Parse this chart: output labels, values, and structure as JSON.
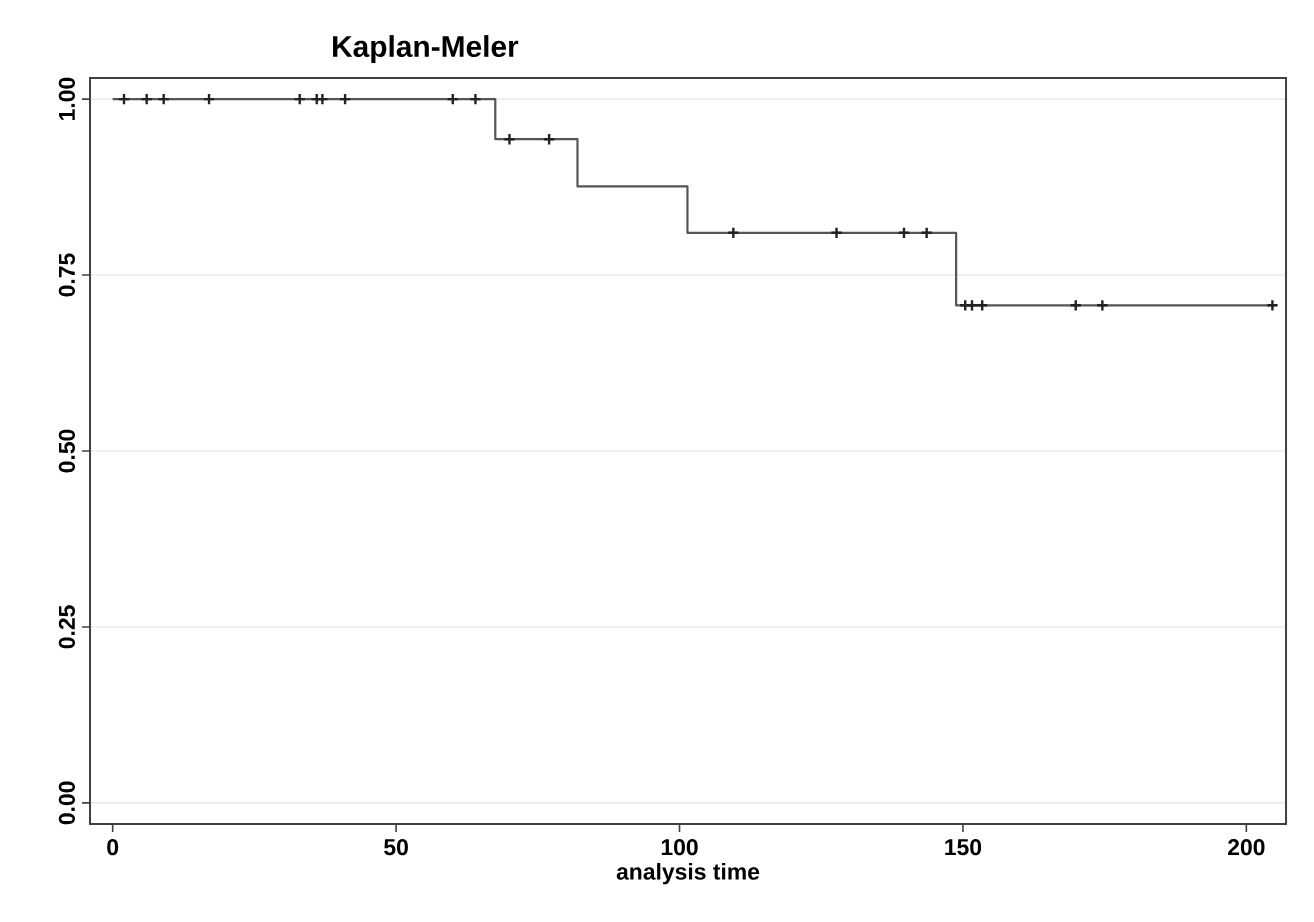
{
  "chart_data": {
    "type": "step",
    "title": "Kaplan-Meler",
    "xlabel": "analysis time",
    "series": [
      {
        "color": "#555555",
        "x": [
          0,
          67.5,
          82,
          101.4,
          148.8,
          205
        ],
        "values": [
          1,
          0.943,
          0.876,
          0.81,
          0.707,
          0.707
        ]
      },
      {
        "type": "scatter",
        "color": "#222222",
        "marker": "cross",
        "x": [
          2,
          6,
          9,
          17,
          33,
          36,
          37,
          41,
          60,
          64,
          70,
          77,
          109.5,
          127.7,
          139.6,
          143.6,
          150.4,
          151.6,
          153.4,
          169.9,
          174.6,
          204.6
        ],
        "values": [
          1,
          1,
          1,
          1,
          1,
          1,
          1,
          1,
          1,
          1,
          0.943,
          0.943,
          0.81,
          0.81,
          0.81,
          0.81,
          0.707,
          0.707,
          0.707,
          0.707,
          0.707,
          0.707
        ]
      }
    ],
    "xlim": [
      -4,
      207
    ],
    "ylim": [
      -0.03,
      1.03
    ],
    "xticks": [
      0,
      50,
      100,
      150,
      200
    ],
    "yticks": [
      {
        "value": 0,
        "label": "0.00"
      },
      {
        "value": 0.25,
        "label": "0.25"
      },
      {
        "value": 0.5,
        "label": "0.50"
      },
      {
        "value": 0.75,
        "label": "0.75"
      },
      {
        "value": 1,
        "label": "1.00"
      }
    ],
    "grid": "y"
  }
}
